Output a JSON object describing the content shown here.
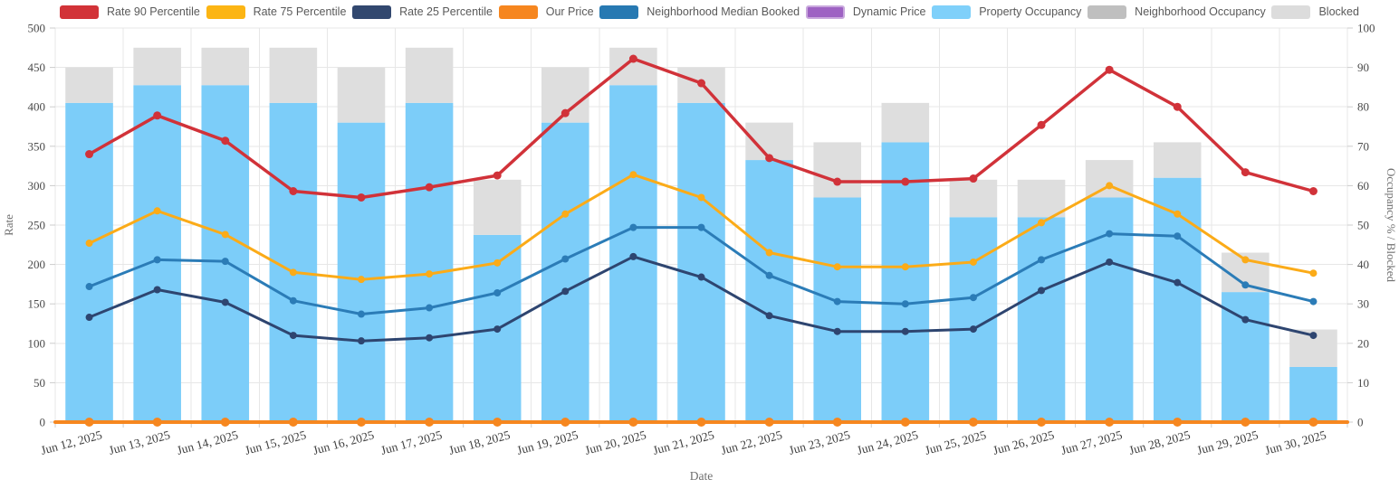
{
  "legend": {
    "items": [
      {
        "label": "Rate 90 Percentile",
        "color": "#d23338"
      },
      {
        "label": "Rate 75 Percentile",
        "color": "#fcb514"
      },
      {
        "label": "Rate 25 Percentile",
        "color": "#32486f"
      },
      {
        "label": "Our Price",
        "color": "#f6861f"
      },
      {
        "label": "Neighborhood Median Booked",
        "color": "#2779b2"
      },
      {
        "label": "Dynamic Price",
        "color": "#9e62c3",
        "border": "#c9a8dd"
      },
      {
        "label": "Property Occupancy",
        "color": "#7fd0fa"
      },
      {
        "label": "Neighborhood Occupancy",
        "color": "#bfbfbf"
      },
      {
        "label": "Blocked",
        "color": "#dcdcdc"
      }
    ]
  },
  "chart_data": {
    "type": "mixed-bar-line",
    "title": "",
    "xlabel": "Date",
    "ylabel_left": "Rate",
    "ylabel_right": "Occupancy % / Blocked",
    "ylim_left": [
      0,
      500
    ],
    "ytick_step_left": 50,
    "ylim_right": [
      0,
      100
    ],
    "ytick_step_right": 10,
    "grid": true,
    "legend_position": "top",
    "categories": [
      "Jun 12, 2025",
      "Jun 13, 2025",
      "Jun 14, 2025",
      "Jun 15, 2025",
      "Jun 16, 2025",
      "Jun 17, 2025",
      "Jun 18, 2025",
      "Jun 19, 2025",
      "Jun 20, 2025",
      "Jun 21, 2025",
      "Jun 22, 2025",
      "Jun 23, 2025",
      "Jun 24, 2025",
      "Jun 25, 2025",
      "Jun 26, 2025",
      "Jun 27, 2025",
      "Jun 28, 2025",
      "Jun 29, 2025",
      "Jun 30, 2025"
    ],
    "bar_series": [
      {
        "name": "Property Occupancy",
        "axis": "right",
        "color": "#7ccdf9",
        "values": [
          81,
          85.5,
          85.5,
          81,
          76,
          81,
          47.5,
          76,
          85.5,
          81,
          66.5,
          57,
          71,
          52,
          52,
          57,
          62,
          33,
          14
        ]
      },
      {
        "name": "Blocked",
        "axis": "right",
        "color": "#dedede",
        "stacked_on": "Property Occupancy",
        "values": [
          9,
          9.5,
          9.5,
          14,
          14,
          14,
          14,
          14,
          9.5,
          9,
          9.5,
          14,
          10,
          9.5,
          9.5,
          9.5,
          9,
          10,
          9.5
        ]
      }
    ],
    "line_series": [
      {
        "name": "Rate 90 Percentile",
        "axis": "left",
        "color": "#d13239",
        "width": 3.5,
        "values": [
          340,
          389,
          357,
          293,
          285,
          298,
          313,
          392,
          461,
          430,
          335,
          305,
          305,
          309,
          377,
          447,
          400,
          317,
          293
        ]
      },
      {
        "name": "Rate 75 Percentile",
        "axis": "left",
        "color": "#fbab18",
        "width": 3,
        "values": [
          227,
          268,
          238,
          190,
          181,
          188,
          202,
          264,
          314,
          285,
          215,
          197,
          197,
          203,
          253,
          300,
          264,
          206,
          189
        ]
      },
      {
        "name": "Neighborhood Median Booked",
        "axis": "left",
        "color": "#2b7cb7",
        "width": 3,
        "values": [
          172,
          206,
          204,
          154,
          137,
          145,
          164,
          207,
          247,
          247,
          186,
          153,
          150,
          158,
          206,
          239,
          236,
          174,
          153
        ]
      },
      {
        "name": "Rate 25 Percentile",
        "axis": "left",
        "color": "#2e4570",
        "width": 3,
        "values": [
          133,
          168,
          152,
          110,
          103,
          107,
          118,
          166,
          210,
          184,
          135,
          115,
          115,
          118,
          167,
          203,
          177,
          130,
          110
        ]
      },
      {
        "name": "Our Price",
        "axis": "left",
        "color": "#f6871f",
        "width": 4,
        "extend_full_width": true,
        "values": [
          0,
          0,
          0,
          0,
          0,
          0,
          0,
          0,
          0,
          0,
          0,
          0,
          0,
          0,
          0,
          0,
          0,
          0,
          0
        ]
      }
    ]
  }
}
